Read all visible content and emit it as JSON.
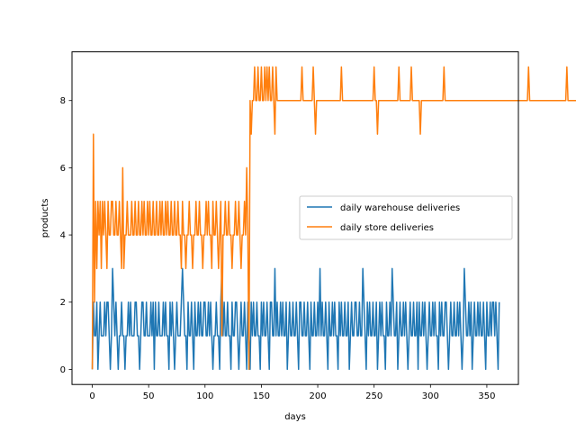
{
  "chart_data": {
    "type": "line",
    "xlabel": "days",
    "ylabel": "products",
    "xlim": [
      -18,
      378
    ],
    "ylim": [
      -0.45,
      9.45
    ],
    "xticks": [
      0,
      50,
      100,
      150,
      200,
      250,
      300,
      350
    ],
    "yticks": [
      0,
      2,
      4,
      6,
      8
    ],
    "legend_position": "center-right",
    "series": [
      {
        "name": "daily warehouse deliveries",
        "color": "#1f77b4",
        "values": [
          0,
          2,
          1,
          1,
          2,
          0,
          1,
          2,
          1,
          1,
          1,
          2,
          1,
          2,
          2,
          1,
          0,
          1,
          3,
          2,
          1,
          2,
          1,
          0,
          1,
          1,
          2,
          1,
          1,
          0,
          1,
          1,
          2,
          1,
          2,
          1,
          1,
          1,
          2,
          2,
          1,
          1,
          0,
          1,
          2,
          2,
          1,
          1,
          2,
          1,
          1,
          1,
          2,
          1,
          2,
          0,
          2,
          1,
          1,
          2,
          1,
          1,
          1,
          2,
          1,
          2,
          1,
          1,
          0,
          2,
          1,
          2,
          1,
          0,
          1,
          2,
          1,
          1,
          1,
          2,
          3,
          2,
          1,
          1,
          0,
          2,
          1,
          1,
          2,
          1,
          0,
          2,
          1,
          1,
          2,
          1,
          2,
          1,
          1,
          2,
          2,
          1,
          1,
          2,
          1,
          2,
          1,
          0,
          1,
          1,
          2,
          1,
          1,
          0,
          2,
          3,
          1,
          2,
          1,
          1,
          2,
          1,
          1,
          0,
          2,
          1,
          1,
          2,
          2,
          1,
          0,
          1,
          2,
          1,
          1,
          2,
          1,
          0,
          2,
          1,
          0,
          2,
          1,
          2,
          1,
          1,
          2,
          1,
          1,
          0,
          2,
          1,
          2,
          1,
          1,
          2,
          1,
          0,
          2,
          2,
          1,
          1,
          3,
          1,
          2,
          1,
          1,
          2,
          1,
          2,
          1,
          1,
          2,
          0,
          1,
          2,
          1,
          1,
          2,
          1,
          1,
          2,
          1,
          0,
          2,
          2,
          1,
          1,
          2,
          1,
          1,
          2,
          1,
          0,
          2,
          1,
          1,
          2,
          1,
          1,
          2,
          1,
          3,
          1,
          2,
          1,
          1,
          2,
          1,
          0,
          2,
          1,
          1,
          2,
          1,
          2,
          1,
          1,
          0,
          2,
          1,
          2,
          1,
          1,
          2,
          1,
          1,
          2,
          0,
          1,
          2,
          1,
          1,
          2,
          2,
          1,
          1,
          2,
          1,
          1,
          3,
          2,
          1,
          0,
          2,
          1,
          2,
          1,
          1,
          2,
          1,
          1,
          2,
          0,
          1,
          2,
          1,
          2,
          1,
          1,
          0,
          2,
          1,
          1,
          2,
          1,
          3,
          2,
          1,
          1,
          2,
          0,
          1,
          2,
          1,
          1,
          2,
          1,
          2,
          1,
          0,
          1,
          2,
          1,
          1,
          2,
          1,
          1,
          2,
          0,
          2,
          1,
          1,
          2,
          1,
          2,
          1,
          0,
          1,
          2,
          1,
          1,
          2,
          1,
          2,
          1,
          1,
          0,
          2,
          1,
          2,
          1,
          1,
          2,
          2,
          1,
          0,
          1,
          2,
          1,
          1,
          2,
          1,
          1,
          2,
          1,
          2,
          1,
          0,
          1,
          3,
          2,
          1,
          1,
          2,
          1,
          2,
          0,
          1,
          2,
          1,
          1,
          2,
          1,
          2,
          1,
          1,
          2,
          1,
          0,
          2,
          1,
          1,
          2,
          1,
          2,
          2,
          1,
          2,
          1,
          0,
          2
        ]
      },
      {
        "name": "daily store deliveries",
        "color": "#ff7f0e",
        "values": [
          0,
          7,
          2,
          5,
          3,
          5,
          4,
          5,
          3,
          5,
          4,
          5,
          4,
          3,
          5,
          4,
          4,
          5,
          5,
          4,
          4,
          5,
          4,
          4,
          5,
          4,
          3,
          6,
          3,
          4,
          4,
          5,
          4,
          4,
          4,
          5,
          4,
          4,
          5,
          4,
          4,
          5,
          4,
          4,
          5,
          4,
          5,
          4,
          4,
          5,
          4,
          5,
          4,
          4,
          5,
          4,
          4,
          5,
          4,
          4,
          5,
          4,
          5,
          4,
          4,
          5,
          4,
          5,
          4,
          4,
          5,
          4,
          4,
          5,
          4,
          4,
          5,
          4,
          4,
          3,
          5,
          4,
          4,
          3,
          4,
          4,
          5,
          4,
          4,
          3,
          4,
          4,
          5,
          4,
          4,
          5,
          4,
          4,
          3,
          4,
          4,
          5,
          4,
          5,
          4,
          4,
          3,
          5,
          4,
          4,
          5,
          4,
          3,
          4,
          5,
          1,
          4,
          4,
          5,
          4,
          4,
          5,
          4,
          4,
          3,
          4,
          4,
          5,
          4,
          4,
          5,
          4,
          3,
          4,
          4,
          5,
          4,
          6,
          4,
          0,
          8,
          7,
          8,
          8,
          9,
          8,
          8,
          9,
          8,
          8,
          9,
          8,
          8,
          9,
          8,
          9,
          8,
          9,
          8,
          8,
          9,
          8,
          7,
          9,
          8,
          8,
          8,
          8,
          8,
          8,
          8,
          8,
          8,
          8,
          8,
          8,
          8,
          8,
          8,
          8,
          8,
          8,
          8,
          8,
          8,
          8,
          9,
          8,
          8,
          8,
          8,
          8,
          8,
          8,
          8,
          8,
          9,
          8,
          7,
          8,
          8,
          8,
          8,
          8,
          8,
          8,
          8,
          8,
          8,
          8,
          8,
          8,
          8,
          8,
          8,
          8,
          8,
          8,
          8,
          8,
          8,
          9,
          8,
          8,
          8,
          8,
          8,
          8,
          8,
          8,
          8,
          8,
          8,
          8,
          8,
          8,
          8,
          8,
          8,
          8,
          8,
          8,
          8,
          8,
          8,
          8,
          8,
          8,
          8,
          8,
          9,
          8,
          8,
          7,
          8,
          8,
          8,
          8,
          8,
          8,
          8,
          8,
          8,
          8,
          8,
          8,
          8,
          8,
          8,
          8,
          8,
          8,
          9,
          8,
          8,
          8,
          8,
          8,
          8,
          8,
          8,
          8,
          8,
          9,
          8,
          8,
          8,
          8,
          8,
          8,
          8,
          7,
          8,
          8,
          8,
          8,
          8,
          8,
          8,
          8,
          8,
          8,
          8,
          8,
          8,
          8,
          8,
          8,
          8,
          8,
          8,
          8,
          9,
          8,
          8,
          8,
          8,
          8,
          8,
          8,
          8,
          8,
          8,
          8,
          8,
          8,
          8,
          8,
          8,
          8,
          8,
          8,
          8,
          8,
          8,
          8,
          8,
          8,
          8,
          8,
          8,
          8,
          8,
          8,
          8,
          8,
          8,
          8,
          8,
          8,
          8,
          8,
          8,
          8,
          8,
          8,
          8,
          8,
          8,
          8,
          8,
          8,
          8,
          8,
          8,
          8,
          8,
          8,
          8,
          8,
          8,
          8,
          8,
          8,
          8,
          8,
          8,
          8,
          8,
          8,
          8,
          8,
          8,
          8,
          8,
          8,
          8,
          9,
          8,
          8,
          8,
          8,
          8,
          8,
          8,
          8,
          8,
          8,
          8,
          8,
          8,
          8,
          8,
          8,
          8,
          8,
          8,
          8,
          8,
          8,
          8,
          8,
          8,
          8,
          8,
          8,
          8,
          8,
          8,
          8,
          8,
          9,
          8,
          8,
          8,
          8,
          8,
          8,
          8,
          8,
          8,
          8,
          8,
          8,
          8,
          8,
          8,
          8,
          8,
          8,
          8,
          8,
          8,
          8,
          8,
          8,
          8,
          8,
          8,
          8,
          8,
          8,
          8,
          8,
          8,
          8,
          8,
          8,
          8,
          8,
          8,
          8
        ]
      }
    ]
  }
}
